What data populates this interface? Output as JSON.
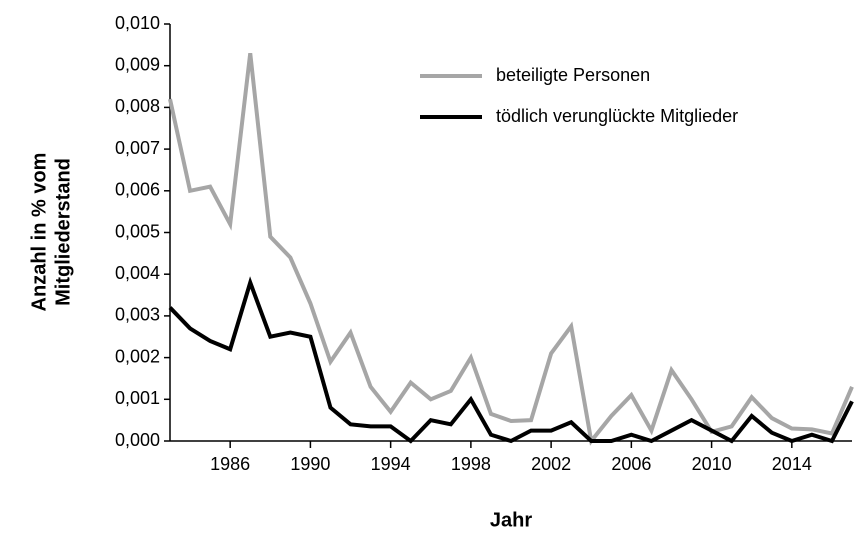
{
  "chart_data": {
    "type": "line",
    "xlabel": "Jahr",
    "ylabel": [
      "Anzahl in % vom",
      "Mitgliederstand"
    ],
    "x": [
      1983,
      1984,
      1985,
      1986,
      1987,
      1988,
      1989,
      1990,
      1991,
      1992,
      1993,
      1994,
      1995,
      1996,
      1997,
      1998,
      1999,
      2000,
      2001,
      2002,
      2003,
      2004,
      2005,
      2006,
      2007,
      2008,
      2009,
      2010,
      2011,
      2012,
      2013,
      2014,
      2015,
      2016,
      2017
    ],
    "series": [
      {
        "name": "beteiligte Personen",
        "color": "#a6a6a6",
        "values": [
          0.0082,
          0.006,
          0.0061,
          0.0052,
          0.0093,
          0.0049,
          0.0044,
          0.0033,
          0.0019,
          0.0026,
          0.0013,
          0.0007,
          0.0014,
          0.001,
          0.0012,
          0.002,
          0.00065,
          0.00048,
          0.0005,
          0.0021,
          0.00275,
          0.0,
          0.0006,
          0.0011,
          0.00025,
          0.0017,
          0.001,
          0.00022,
          0.00035,
          0.00105,
          0.00055,
          0.0003,
          0.00028,
          0.00018,
          0.0013
        ]
      },
      {
        "name": "tödlich verunglückte Mitglieder",
        "color": "#000000",
        "values": [
          0.0032,
          0.0027,
          0.0024,
          0.0022,
          0.0038,
          0.0025,
          0.0026,
          0.0025,
          0.0008,
          0.0004,
          0.00035,
          0.00035,
          0.0,
          0.0005,
          0.0004,
          0.001,
          0.00015,
          0.0,
          0.00025,
          0.00025,
          0.00045,
          0.0,
          0.0,
          0.00015,
          0.0,
          0.00025,
          0.0005,
          0.00025,
          0.0,
          0.0006,
          0.0002,
          0.0,
          0.00015,
          0.0,
          0.00095
        ]
      }
    ],
    "xlim": [
      1983,
      2017
    ],
    "xticks": [
      1986,
      1990,
      1994,
      1998,
      2002,
      2006,
      2010,
      2014
    ],
    "ylim": [
      0,
      0.01
    ],
    "yticks": [
      {
        "value": 0,
        "label": "0,000"
      },
      {
        "value": 0.001,
        "label": "0,001"
      },
      {
        "value": 0.002,
        "label": "0,002"
      },
      {
        "value": 0.003,
        "label": "0,003"
      },
      {
        "value": 0.004,
        "label": "0,004"
      },
      {
        "value": 0.005,
        "label": "0,005"
      },
      {
        "value": 0.006,
        "label": "0,006"
      },
      {
        "value": 0.007,
        "label": "0,007"
      },
      {
        "value": 0.008,
        "label": "0,008"
      },
      {
        "value": 0.009,
        "label": "0,009"
      },
      {
        "value": 0.01,
        "label": "0,010"
      }
    ],
    "legend": "upper right"
  }
}
